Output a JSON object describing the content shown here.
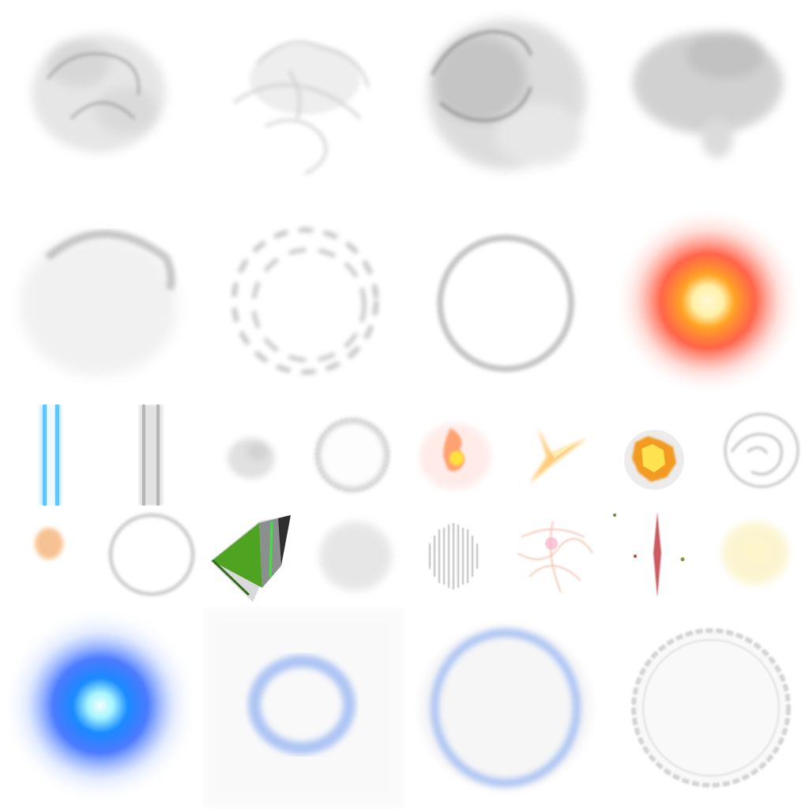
{
  "sheet": {
    "background": "#ffffff",
    "rows": [
      {
        "cells": [
          {
            "name": "smoke-puff-1-icon",
            "kind": "smoke",
            "tint": "#8a8a8a"
          },
          {
            "name": "smoke-wisp-icon",
            "kind": "wisp",
            "tint": "#9a9a9a"
          },
          {
            "name": "smoke-puff-dense-icon",
            "kind": "smoke",
            "tint": "#6f6f6f"
          },
          {
            "name": "smoke-puff-2-icon",
            "kind": "smoke",
            "tint": "#7d7d7d"
          }
        ]
      },
      {
        "cells": [
          {
            "name": "dust-dome-icon",
            "kind": "dome",
            "tint": "#8c8c8c"
          },
          {
            "name": "smoke-ring-broken-icon",
            "kind": "broken-ring",
            "tint": "#9c9c9c"
          },
          {
            "name": "shockwave-ring-icon",
            "kind": "ring",
            "tint": "#a8a8a8"
          },
          {
            "name": "fire-glow-orb-icon",
            "kind": "glow",
            "tint": "#ff3b1f",
            "core": "#fff6c8"
          }
        ]
      },
      {
        "cells": [
          {
            "name": "blue-beam-icon",
            "kind": "beam",
            "tint": "#59c8ff"
          },
          {
            "name": "grey-beam-icon",
            "kind": "beam",
            "tint": "#b5b5b5"
          },
          {
            "name": "faint-smoke-small-icon",
            "kind": "faint",
            "tint": "#b0b0b0"
          },
          {
            "name": "burst-ring-small-icon",
            "kind": "burst-ring",
            "tint": "#909090"
          },
          {
            "name": "fire-flicker-icon",
            "kind": "flame",
            "tint": "#ff9d3a"
          },
          {
            "name": "fire-slash-icon",
            "kind": "slash",
            "tint": "#ffb13b"
          },
          {
            "name": "explosion-small-icon",
            "kind": "explosion",
            "tint": "#f3b02c"
          },
          {
            "name": "swirl-smoke-icon",
            "kind": "swirl",
            "tint": "#9a9a9a"
          }
        ]
      },
      {
        "cells": [
          {
            "name": "ember-small-icon",
            "kind": "ember",
            "tint": "#f3a35a"
          },
          {
            "name": "ring-thin-icon",
            "kind": "thin-ring",
            "tint": "#b9b9b9"
          },
          {
            "name": "green-panel-sprite-icon",
            "kind": "panel",
            "tint": "#4ea321"
          },
          {
            "name": "dust-cloud-small-icon",
            "kind": "dust",
            "tint": "#bdbdbd"
          },
          {
            "name": "vertical-streaks-icon",
            "kind": "streaks",
            "tint": "#8f8f8f"
          },
          {
            "name": "spark-web-icon",
            "kind": "sparkweb",
            "tint": "#e88a6a"
          },
          {
            "name": "red-spike-icon",
            "kind": "spike",
            "tint": "#c0303a"
          },
          {
            "name": "yellow-glow-smoke-icon",
            "kind": "yellowglow",
            "tint": "#f7e27a"
          }
        ]
      },
      {
        "cells": [
          {
            "name": "blue-glow-orb-icon",
            "kind": "glow",
            "tint": "#1f6bff",
            "core": "#e8ffff"
          },
          {
            "name": "blue-ring-soft-icon",
            "kind": "soft-ring",
            "tint": "#7aa2f0"
          },
          {
            "name": "blue-ring-large-icon",
            "kind": "ellipse-ring",
            "tint": "#8db0f3"
          },
          {
            "name": "cracked-ring-icon",
            "kind": "cracked-ring",
            "tint": "#c4c4c4"
          }
        ]
      }
    ]
  }
}
